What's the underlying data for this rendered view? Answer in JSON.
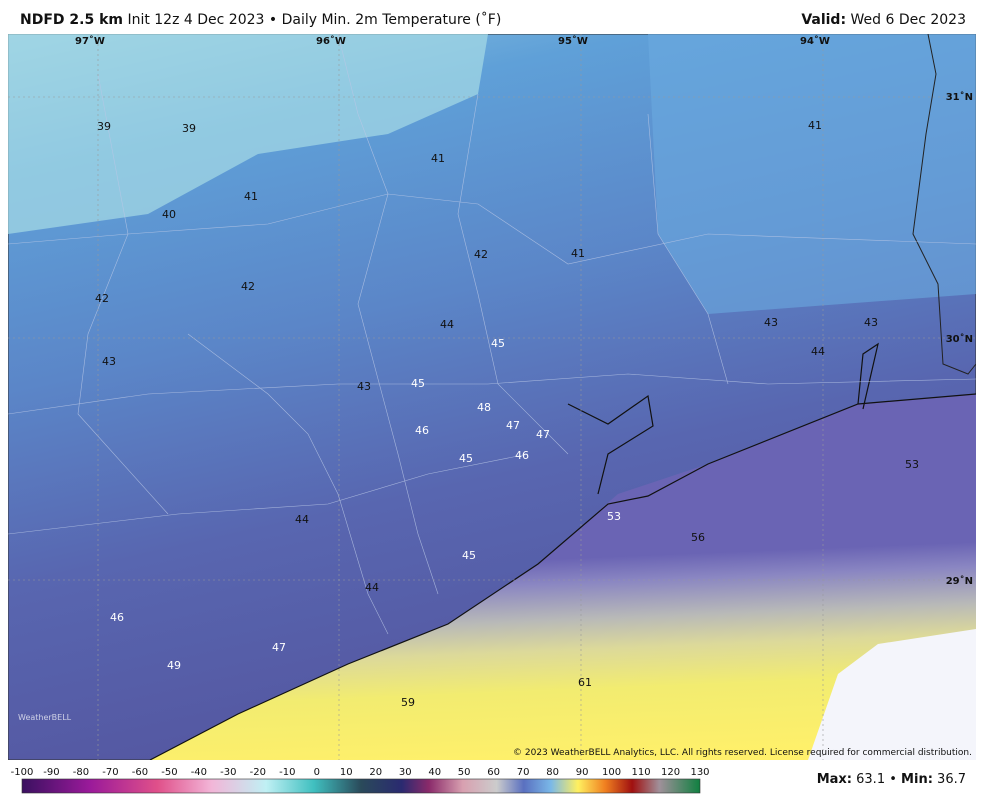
{
  "header": {
    "model": "NDFD 2.5 km",
    "init": "Init 12z 4 Dec 2023",
    "separator": "•",
    "product": "Daily Min. 2m Temperature (˚F)",
    "valid_label": "Valid:",
    "valid": " Wed 6 Dec 2023"
  },
  "map": {
    "longitudes": [
      "97˚W",
      "96˚W",
      "95˚W",
      "94˚W"
    ],
    "latitudes": [
      "31˚N",
      "30˚N",
      "29˚N"
    ],
    "points": [
      "39",
      "39",
      "41",
      "41",
      "40",
      "42",
      "41",
      "42",
      "42",
      "41",
      "43",
      "44",
      "45",
      "43",
      "43",
      "44",
      "43",
      "45",
      "48",
      "47",
      "47",
      "46",
      "45",
      "46",
      "53",
      "53",
      "56",
      "44",
      "45",
      "44",
      "46",
      "47",
      "49",
      "61",
      "59"
    ],
    "copyright": "© 2023 WeatherBELL Analytics, LLC. All rights reserved. License required for commercial distribution.",
    "logo": "WeatherBELL"
  },
  "colorbar": {
    "ticks": [
      "-100",
      "-90",
      "-80",
      "-70",
      "-60",
      "-50",
      "-40",
      "-30",
      "-20",
      "-10",
      "0",
      "10",
      "20",
      "30",
      "40",
      "50",
      "60",
      "70",
      "80",
      "90",
      "100",
      "110",
      "120",
      "130"
    ]
  },
  "footer": {
    "max_label": "Max:",
    "max": "63.1",
    "min_label": "Min:",
    "min": "36.7"
  }
}
